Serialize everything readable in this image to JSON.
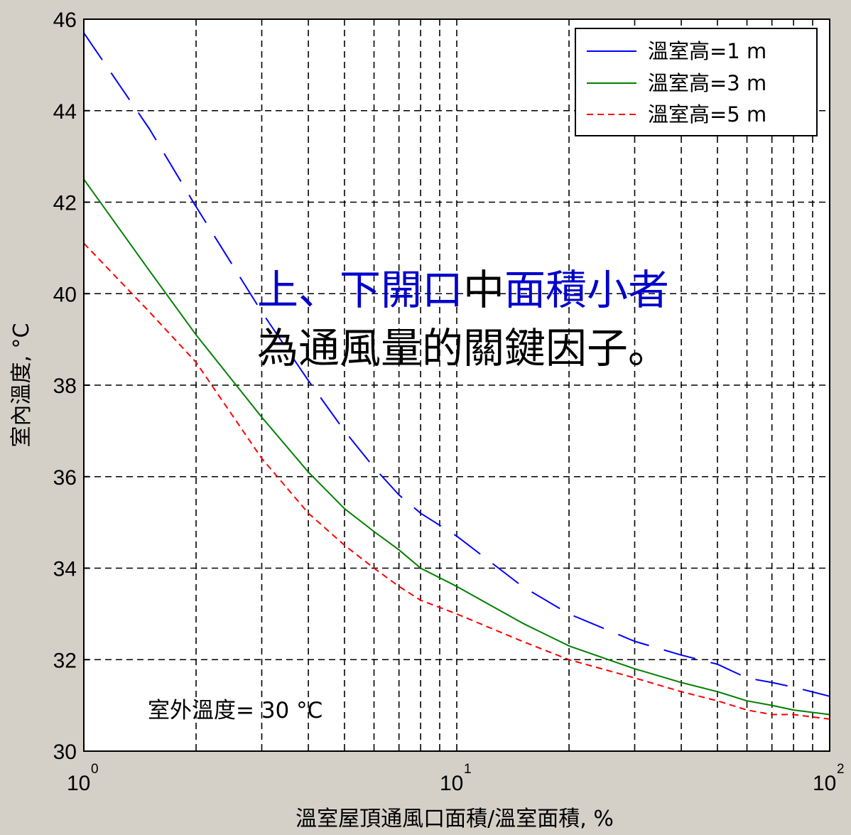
{
  "chart_data": {
    "type": "line",
    "title": "",
    "xlabel": "溫室屋頂通風口面積/溫室面積, %",
    "ylabel": "室內溫度, °C",
    "xscale": "log",
    "xlim": [
      1,
      100
    ],
    "ylim": [
      30,
      46
    ],
    "grid": true,
    "legend_position": "top-right",
    "x_ticks": [
      {
        "value": 1,
        "base": "10",
        "exp": "0"
      },
      {
        "value": 10,
        "base": "10",
        "exp": "1"
      },
      {
        "value": 100,
        "base": "10",
        "exp": "2"
      }
    ],
    "y_ticks": [
      30,
      32,
      34,
      36,
      38,
      40,
      42,
      44,
      46
    ],
    "x": [
      1,
      1.5,
      2,
      3,
      4,
      5,
      6,
      7,
      8,
      10,
      15,
      20,
      30,
      40,
      50,
      60,
      70,
      80,
      100
    ],
    "series": [
      {
        "name": "溫室高=1 m",
        "color": "#0000ff",
        "dash": "long-dash",
        "values": [
          45.7,
          43.6,
          41.9,
          39.6,
          38.1,
          37.0,
          36.2,
          35.6,
          35.2,
          34.7,
          33.6,
          33.0,
          32.4,
          32.1,
          31.9,
          31.6,
          31.5,
          31.4,
          31.2
        ]
      },
      {
        "name": "溫室高=3 m",
        "color": "#008000",
        "dash": "solid",
        "values": [
          42.5,
          40.5,
          39.1,
          37.3,
          36.1,
          35.3,
          34.8,
          34.4,
          34.0,
          33.6,
          32.8,
          32.3,
          31.8,
          31.5,
          31.3,
          31.1,
          31.0,
          30.9,
          30.8
        ]
      },
      {
        "name": "溫室高=5 m",
        "color": "#ff0000",
        "dash": "short-dash",
        "values": [
          41.1,
          39.6,
          38.5,
          36.4,
          35.2,
          34.5,
          34.0,
          33.6,
          33.3,
          33.0,
          32.4,
          32.0,
          31.6,
          31.3,
          31.1,
          30.9,
          30.8,
          30.8,
          30.7
        ]
      }
    ],
    "annotations": {
      "outdoor_temp": "室外溫度= 30 °C",
      "callout_line1": [
        {
          "text": "上、下開口",
          "color": "#0000cc"
        },
        {
          "text": "中",
          "color": "#000000"
        },
        {
          "text": "面積小者",
          "color": "#0000cc"
        }
      ],
      "callout_line2": "為通風量的關鍵因子。"
    }
  }
}
